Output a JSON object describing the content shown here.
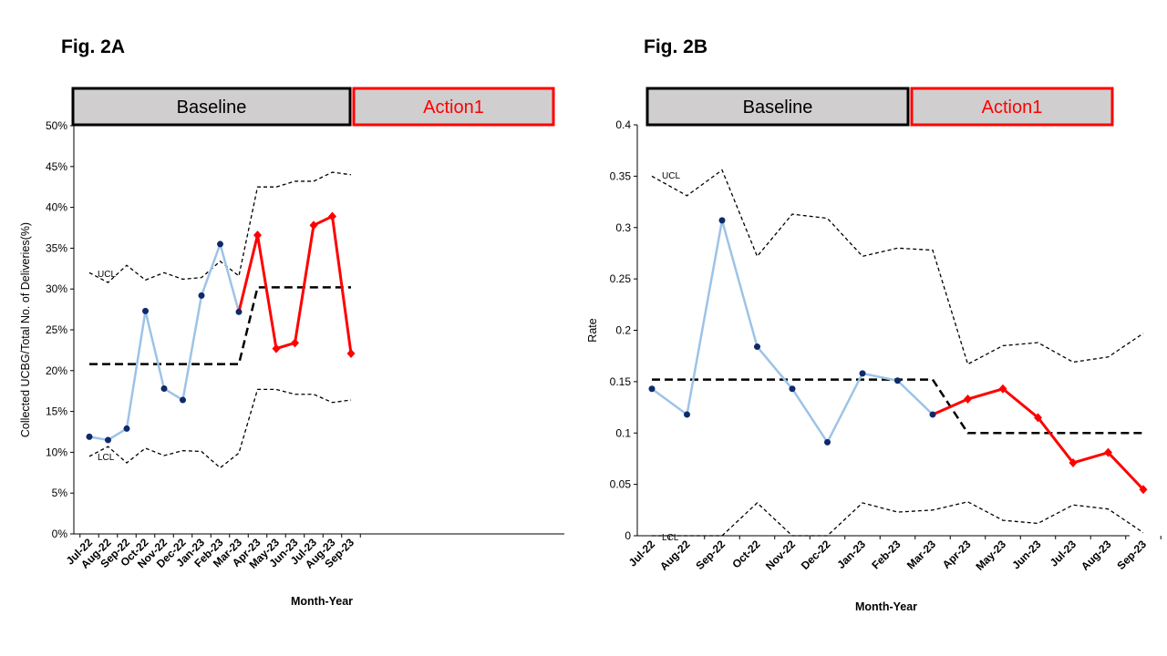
{
  "chart_data": [
    {
      "type": "line",
      "panel_title": "Fig. 2A",
      "xlabel": "Month-Year",
      "ylabel": "Collected UCBG/Total No. of Deliveries(%)",
      "ylim": [
        0,
        50
      ],
      "yticks": [
        "0%",
        "5%",
        "10%",
        "15%",
        "20%",
        "25%",
        "30%",
        "35%",
        "40%",
        "45%",
        "50%"
      ],
      "categories": [
        "Jul-22",
        "Aug-22",
        "Sep-22",
        "Oct-22",
        "Nov-22",
        "Dec-22",
        "Jan-23",
        "Feb-23",
        "Mar-23",
        "Apr-23",
        "May-23",
        "Jun-23",
        "Jul-23",
        "Aug-23",
        "Sep-23"
      ],
      "phases": [
        {
          "label": "Baseline",
          "start": 0,
          "end": 8,
          "border_color": "#000000",
          "text_color": "#000000"
        },
        {
          "label": "Action1",
          "start": 8,
          "end": 14,
          "border_color": "#ff0000",
          "text_color": "#ff0000"
        }
      ],
      "series": [
        {
          "values": [
            11.9,
            11.5,
            12.9,
            27.3,
            17.8,
            16.4,
            29.2,
            35.5,
            27.2,
            36.6,
            22.7,
            23.4,
            37.8,
            38.9,
            22.1
          ],
          "baseline_color": "#9dc3e6",
          "action_color": "#ff0000",
          "marker_color": "#0f2a6b",
          "split_index": 8
        },
        {
          "values": [
            20.8,
            20.8,
            20.8,
            20.8,
            20.8,
            20.8,
            20.8,
            20.8,
            20.8,
            30.2,
            30.2,
            30.2,
            30.2,
            30.2,
            30.2
          ],
          "style": "center"
        },
        {
          "values": [
            32.0,
            30.8,
            32.9,
            31.1,
            32.0,
            31.2,
            31.4,
            33.4,
            31.6,
            42.5,
            42.5,
            43.2,
            43.2,
            44.3,
            44.0
          ],
          "style": "limit",
          "label": "UCL"
        },
        {
          "values": [
            9.5,
            10.7,
            8.7,
            10.5,
            9.6,
            10.2,
            10.1,
            8.1,
            9.9,
            17.7,
            17.7,
            17.1,
            17.1,
            16.1,
            16.4
          ],
          "style": "limit",
          "label": "LCL"
        }
      ]
    },
    {
      "type": "line",
      "panel_title": "Fig. 2B",
      "xlabel": "Month-Year",
      "ylabel": "Rate",
      "ylim": [
        0,
        0.4
      ],
      "yticks": [
        "0",
        "0.05",
        "0.1",
        "0.15",
        "0.2",
        "0.25",
        "0.3",
        "0.35",
        "0.4"
      ],
      "categories": [
        "Jul-22",
        "Aug-22",
        "Sep-22",
        "Oct-22",
        "Nov-22",
        "Dec-22",
        "Jan-23",
        "Feb-23",
        "Mar-23",
        "Apr-23",
        "May-23",
        "Jun-23",
        "Jul-23",
        "Aug-23",
        "Sep-23"
      ],
      "phases": [
        {
          "label": "Baseline",
          "start": 0,
          "end": 8,
          "border_color": "#000000",
          "text_color": "#000000"
        },
        {
          "label": "Action1",
          "start": 8,
          "end": 14,
          "border_color": "#ff0000",
          "text_color": "#ff0000"
        }
      ],
      "series": [
        {
          "values": [
            0.143,
            0.118,
            0.307,
            0.184,
            0.143,
            0.091,
            0.158,
            0.151,
            0.118,
            0.133,
            0.143,
            0.115,
            0.071,
            0.081,
            0.045
          ],
          "baseline_color": "#9dc3e6",
          "action_color": "#ff0000",
          "marker_color": "#0f2a6b",
          "split_index": 8
        },
        {
          "values": [
            0.152,
            0.152,
            0.152,
            0.152,
            0.152,
            0.152,
            0.152,
            0.152,
            0.152,
            0.1,
            0.1,
            0.1,
            0.1,
            0.1,
            0.1
          ],
          "style": "center"
        },
        {
          "values": [
            0.35,
            0.331,
            0.356,
            0.272,
            0.313,
            0.309,
            0.272,
            0.28,
            0.278,
            0.167,
            0.185,
            0.188,
            0.169,
            0.174,
            0.197
          ],
          "style": "limit",
          "label": "UCL"
        },
        {
          "values": [
            0,
            0,
            0,
            0.032,
            0,
            0,
            0.032,
            0.023,
            0.025,
            0.033,
            0.015,
            0.012,
            0.03,
            0.026,
            0.003
          ],
          "style": "limit",
          "label": "LCL"
        }
      ]
    }
  ]
}
